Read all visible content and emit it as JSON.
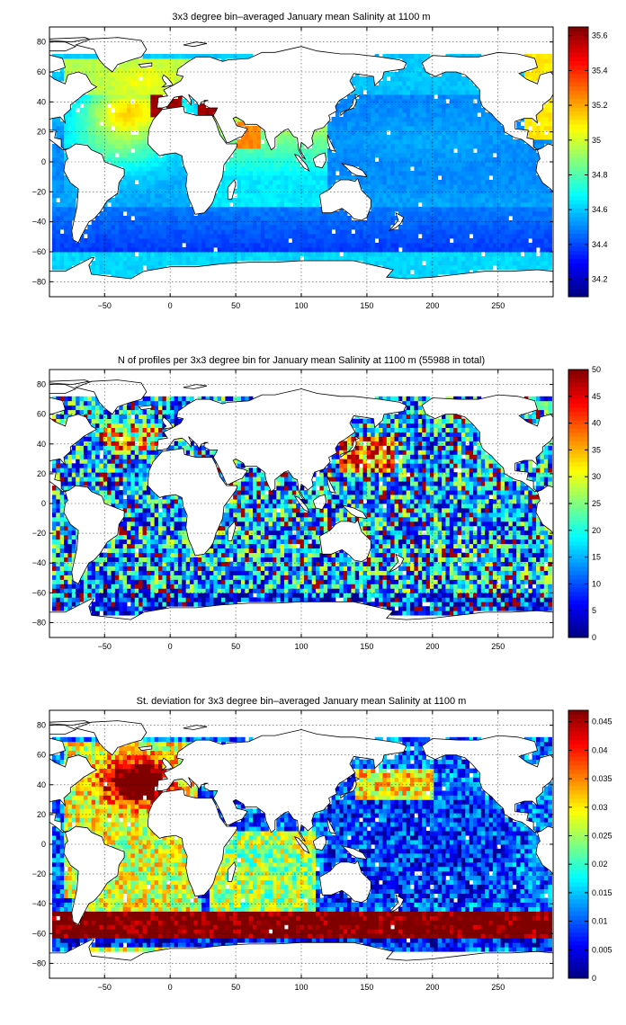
{
  "chart_data": [
    {
      "type": "heatmap",
      "title": "3x3 degree bin–averaged January mean Salinity at 1100 m",
      "xlim": [
        -92,
        292
      ],
      "ylim": [
        -90,
        90
      ],
      "x_ticks": [
        -50,
        0,
        50,
        100,
        150,
        200,
        250
      ],
      "y_ticks": [
        80,
        60,
        40,
        20,
        0,
        -20,
        -40,
        -60,
        -80
      ],
      "grid": true,
      "colorbar": {
        "range": [
          34.1,
          35.65
        ],
        "ticks": [
          35.6,
          35.4,
          35.2,
          35,
          34.8,
          34.6,
          34.4,
          34.2
        ],
        "colormap": "jet"
      },
      "field": "salinity"
    },
    {
      "type": "heatmap",
      "title": "N of profiles per 3x3 degree bin for January mean Salinity at 1100 m (55988 in total)",
      "xlim": [
        -92,
        292
      ],
      "ylim": [
        -90,
        90
      ],
      "x_ticks": [
        -50,
        0,
        50,
        100,
        150,
        200,
        250
      ],
      "y_ticks": [
        80,
        60,
        40,
        20,
        0,
        -20,
        -40,
        -60,
        -80
      ],
      "grid": true,
      "colorbar": {
        "range": [
          0,
          50
        ],
        "ticks": [
          50,
          45,
          40,
          35,
          30,
          25,
          20,
          15,
          10,
          5,
          0
        ],
        "colormap": "jet"
      },
      "field": "count"
    },
    {
      "type": "heatmap",
      "title": "St. deviation for 3x3 degree bin–averaged January mean Salinity at 1100 m",
      "xlim": [
        -92,
        292
      ],
      "ylim": [
        -90,
        90
      ],
      "x_ticks": [
        -50,
        0,
        50,
        100,
        150,
        200,
        250
      ],
      "y_ticks": [
        80,
        60,
        40,
        20,
        0,
        -20,
        -40,
        -60,
        -80
      ],
      "grid": true,
      "colorbar": {
        "range": [
          0,
          0.047
        ],
        "ticks": [
          0.045,
          0.04,
          0.035,
          0.03,
          0.025,
          0.02,
          0.015,
          0.01,
          0.005,
          0
        ],
        "colormap": "jet"
      },
      "field": "std"
    }
  ]
}
